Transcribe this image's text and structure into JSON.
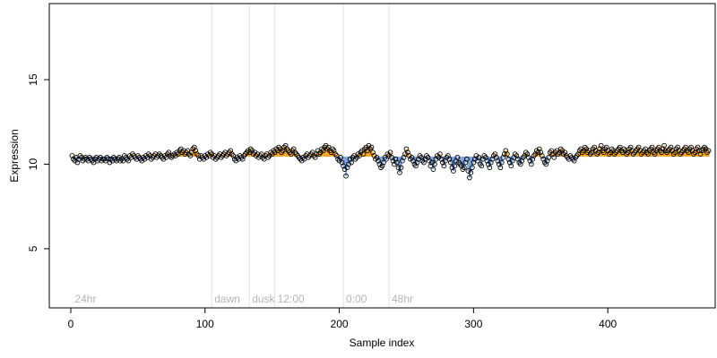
{
  "chart_data": {
    "type": "scatter",
    "title": "",
    "xlabel": "Sample index",
    "ylabel": "Expression",
    "xlim": [
      -16,
      480
    ],
    "ylim": [
      1.5,
      19.5
    ],
    "x_ticks": [
      0,
      100,
      200,
      300,
      400
    ],
    "y_ticks": [
      5,
      10,
      15
    ],
    "x_tick_labels": [
      "0",
      "100",
      "200",
      "300",
      "400"
    ],
    "y_tick_labels": [
      "5",
      "10",
      "15"
    ],
    "baseline": 10.45,
    "grid": false,
    "legend": "none",
    "point_color": "#000000",
    "above_baseline_color": "#f5a623",
    "below_baseline_color": "#7ea6e0",
    "vertical_markers": [
      {
        "x": 105,
        "label": "dawn"
      },
      {
        "x": 133,
        "label": "dusk"
      },
      {
        "x": 152,
        "label": "12:00"
      },
      {
        "x": 203,
        "label": "0:00"
      },
      {
        "x": 237,
        "label": "48hr"
      }
    ],
    "corner_annotation": {
      "x": 3,
      "label": "24hr"
    },
    "series": [
      {
        "x_start": 1,
        "x_step": 1,
        "y": [
          10.5,
          10.3,
          10.2,
          10.4,
          10.1,
          10.3,
          10.5,
          10.4,
          10.2,
          10.3,
          10.4,
          10.3,
          10.2,
          10.4,
          10.3,
          10.2,
          10.1,
          10.3,
          10.4,
          10.2,
          10.3,
          10.4,
          10.2,
          10.3,
          10.3,
          10.2,
          10.4,
          10.3,
          10.1,
          10.3,
          10.2,
          10.4,
          10.3,
          10.2,
          10.3,
          10.4,
          10.2,
          10.3,
          10.2,
          10.5,
          10.4,
          10.3,
          10.2,
          10.5,
          10.4,
          10.6,
          10.5,
          10.4,
          10.3,
          10.5,
          10.4,
          10.3,
          10.2,
          10.4,
          10.3,
          10.5,
          10.4,
          10.6,
          10.5,
          10.3,
          10.4,
          10.5,
          10.6,
          10.4,
          10.5,
          10.6,
          10.5,
          10.4,
          10.3,
          10.5,
          10.4,
          10.6,
          10.7,
          10.5,
          10.4,
          10.5,
          10.6,
          10.5,
          10.7,
          10.6,
          10.8,
          10.9,
          10.7,
          10.8,
          10.6,
          10.7,
          10.8,
          10.6,
          10.5,
          10.7,
          10.9,
          11.0,
          10.8,
          10.6,
          10.5,
          10.3,
          10.5,
          10.4,
          10.3,
          10.5,
          10.4,
          10.6,
          10.5,
          10.7,
          10.6,
          10.4,
          10.5,
          10.3,
          10.4,
          10.5,
          10.6,
          10.4,
          10.5,
          10.6,
          10.7,
          10.5,
          10.6,
          10.7,
          10.8,
          10.6,
          10.5,
          10.3,
          10.2,
          10.4,
          10.3,
          10.5,
          10.4,
          10.3,
          10.5,
          10.6,
          10.7,
          10.8,
          10.7,
          10.9,
          10.8,
          10.6,
          10.7,
          10.5,
          10.6,
          10.4,
          10.5,
          10.6,
          10.4,
          10.3,
          10.5,
          10.6,
          10.4,
          10.5,
          10.7,
          10.6,
          10.8,
          10.7,
          10.9,
          10.8,
          11.0,
          10.9,
          10.7,
          10.8,
          11.0,
          11.1,
          10.9,
          10.8,
          10.7,
          10.6,
          10.8,
          10.9,
          10.7,
          10.6,
          10.5,
          10.4,
          10.3,
          10.2,
          10.4,
          10.3,
          10.5,
          10.6,
          10.4,
          10.5,
          10.6,
          10.7,
          10.5,
          10.4,
          10.6,
          10.8,
          10.6,
          10.7,
          10.9,
          10.8,
          11.0,
          11.1,
          10.9,
          11.0,
          10.8,
          10.7,
          10.9,
          10.8,
          10.6,
          10.5,
          10.3,
          10.2,
          10.4,
          10.1,
          9.9,
          9.7,
          9.3,
          9.8,
          10.0,
          10.3,
          10.1,
          10.4,
          10.5,
          10.3,
          10.4,
          10.6,
          10.5,
          10.7,
          10.8,
          10.6,
          10.9,
          11.0,
          10.8,
          11.1,
          10.9,
          11.0,
          10.7,
          10.5,
          10.3,
          10.4,
          10.2,
          10.0,
          9.8,
          9.9,
          10.1,
          10.4,
          10.3,
          10.6,
          10.5,
          10.7,
          10.4,
          10.2,
          10.0,
          10.3,
          10.1,
          9.8,
          9.5,
          9.8,
          10.2,
          10.4,
          10.6,
          10.9,
          10.7,
          10.5,
          10.3,
          10.4,
          10.2,
          10.0,
          9.9,
          10.1,
          10.3,
          10.5,
          10.4,
          10.2,
          10.1,
          10.3,
          10.5,
          10.4,
          10.2,
          9.9,
          10.1,
          9.7,
          10.0,
          10.3,
          10.5,
          10.4,
          10.6,
          10.3,
          10.1,
          9.9,
          10.2,
          10.4,
          10.5,
          10.3,
          10.1,
          9.8,
          9.6,
          9.9,
          10.2,
          10.4,
          10.1,
          10.0,
          9.9,
          9.7,
          9.8,
          10.1,
          10.3,
          9.6,
          9.2,
          9.5,
          9.8,
          10.1,
          10.3,
          10.5,
          10.2,
          10.4,
          10.0,
          9.9,
          10.3,
          10.5,
          10.4,
          10.2,
          10.0,
          9.8,
          10.1,
          10.3,
          10.5,
          10.6,
          10.4,
          10.2,
          10.0,
          9.8,
          10.1,
          10.4,
          10.6,
          10.8,
          10.6,
          10.3,
          10.1,
          9.9,
          10.2,
          10.4,
          10.6,
          10.5,
          10.3,
          10.1,
          10.0,
          10.2,
          10.4,
          10.5,
          10.7,
          10.6,
          10.4,
          10.2,
          10.0,
          10.3,
          10.5,
          10.6,
          10.8,
          10.7,
          10.9,
          10.7,
          10.5,
          10.3,
          10.1,
          10.0,
          10.2,
          10.4,
          10.7,
          10.8,
          10.6,
          10.4,
          10.7,
          10.8,
          10.6,
          10.7,
          10.9,
          10.8,
          10.6,
          10.7,
          10.5,
          10.4,
          10.3,
          10.5,
          10.4,
          10.3,
          10.2,
          10.4,
          10.5,
          10.6,
          10.8,
          10.9,
          10.7,
          10.8,
          11.0,
          10.9,
          10.7,
          10.8,
          10.6,
          10.7,
          10.9,
          11.0,
          10.8,
          10.6,
          10.7,
          10.9,
          11.1,
          10.8,
          10.7,
          10.9,
          11.0,
          10.8,
          10.6,
          10.7,
          10.9,
          10.8,
          10.6,
          10.7,
          10.8,
          10.9,
          11.0,
          10.8,
          10.7,
          10.9,
          10.8,
          10.6,
          10.7,
          10.9,
          11.0,
          10.8,
          10.6,
          10.7,
          10.8,
          10.9,
          11.0,
          10.8,
          10.6,
          10.7,
          10.8,
          10.9,
          10.7,
          10.6,
          10.8,
          10.9,
          11.0,
          10.7,
          10.6,
          10.8,
          10.9,
          11.0,
          10.8,
          10.7,
          10.9,
          11.1,
          10.8,
          10.7,
          10.8,
          10.9,
          11.0,
          10.8,
          10.6,
          10.7,
          10.9,
          11.0,
          10.8,
          10.6,
          10.7,
          10.8,
          10.9,
          11.0,
          10.8,
          10.7,
          10.9,
          11.0,
          10.8,
          10.6,
          10.7,
          10.9,
          11.0,
          10.8,
          10.6,
          10.8,
          10.9,
          11.0,
          10.9,
          10.7,
          10.8
        ]
      }
    ]
  }
}
